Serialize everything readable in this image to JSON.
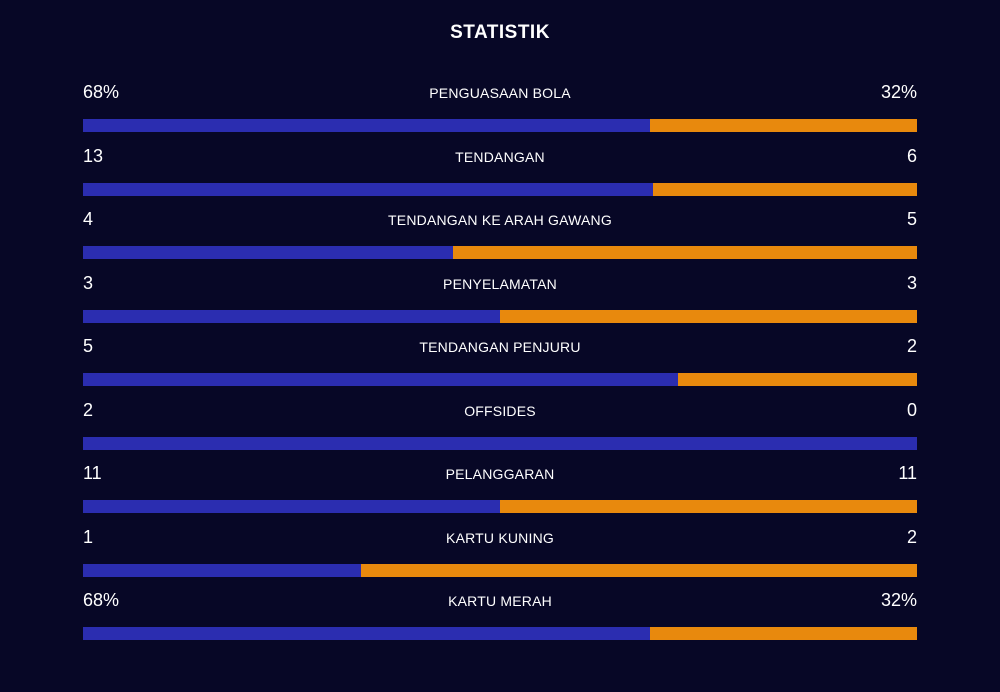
{
  "header": {
    "title": "STATISTIK"
  },
  "colors": {
    "background": "#070726",
    "home": "#2b2db0",
    "away": "#e8890d"
  },
  "stats": [
    {
      "label": "PENGUASAAN BOLA",
      "home": "68%",
      "away": "32%",
      "home_share": 0.68
    },
    {
      "label": "TENDANGAN",
      "home": "13",
      "away": "6",
      "home_share": 0.684
    },
    {
      "label": "TENDANGAN KE ARAH GAWANG",
      "home": "4",
      "away": "5",
      "home_share": 0.444
    },
    {
      "label": "PENYELAMATAN",
      "home": "3",
      "away": "3",
      "home_share": 0.5
    },
    {
      "label": "TENDANGAN PENJURU",
      "home": "5",
      "away": "2",
      "home_share": 0.714
    },
    {
      "label": "OFFSIDES",
      "home": "2",
      "away": "0",
      "home_share": 1.0
    },
    {
      "label": "PELANGGARAN",
      "home": "11",
      "away": "11",
      "home_share": 0.5
    },
    {
      "label": "KARTU KUNING",
      "home": "1",
      "away": "2",
      "home_share": 0.333
    },
    {
      "label": "KARTU MERAH",
      "home": "68%",
      "away": "32%",
      "home_share": 0.68
    }
  ]
}
